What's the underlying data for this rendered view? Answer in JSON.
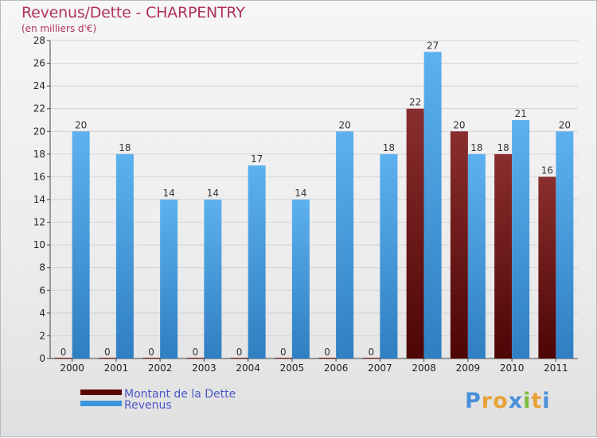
{
  "chart_data": {
    "type": "bar",
    "title": "Revenus/Dette - CHARPENTRY",
    "subtitle": "(en milliers d'€)",
    "categories": [
      "2000",
      "2001",
      "2002",
      "2003",
      "2004",
      "2005",
      "2006",
      "2007",
      "2008",
      "2009",
      "2010",
      "2011"
    ],
    "series": [
      {
        "name": "Montant de la Dette",
        "color": "#7a1a1a",
        "values": [
          0,
          0,
          0,
          0,
          0,
          0,
          0,
          0,
          22,
          20,
          18,
          16
        ]
      },
      {
        "name": "Revenus",
        "color": "#3a95db",
        "values": [
          20,
          18,
          14,
          14,
          17,
          14,
          20,
          18,
          27,
          18,
          21,
          20
        ]
      }
    ],
    "ylim": [
      0,
      28
    ],
    "yticks": [
      0,
      2,
      4,
      6,
      8,
      10,
      12,
      14,
      16,
      18,
      20,
      22,
      24,
      26,
      28
    ],
    "grid": true,
    "legend_position": "bottom-left"
  },
  "logo": {
    "letters": [
      "P",
      "r",
      "o",
      "x",
      "i",
      "t",
      "i"
    ],
    "colors": [
      "#4a90d9",
      "#e8a23a",
      "#e8a23a",
      "#4a90d9",
      "#7bbf3a",
      "#e8a23a",
      "#4a90d9"
    ]
  }
}
